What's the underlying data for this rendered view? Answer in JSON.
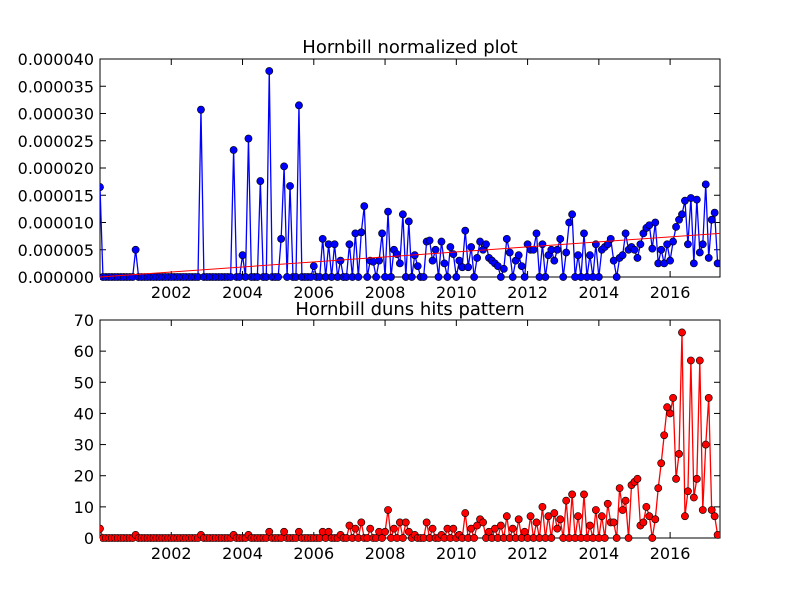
{
  "chart_data": [
    {
      "type": "line",
      "title": "Hornbill normalized plot",
      "xlabel": "",
      "ylabel": "",
      "xlim": [
        2000.0,
        2017.4
      ],
      "ylim": [
        0,
        4e-05
      ],
      "xticks": [
        2002,
        2004,
        2006,
        2008,
        2010,
        2012,
        2014,
        2016
      ],
      "xtick_labels": [
        "2002",
        "2004",
        "2006",
        "2008",
        "2010",
        "2012",
        "2014",
        "2016"
      ],
      "yticks": [
        0,
        5e-06,
        1e-05,
        1.5e-05,
        2e-05,
        2.5e-05,
        3e-05,
        3.5e-05,
        4e-05
      ],
      "ytick_labels": [
        "0.000000",
        "0.000005",
        "0.000010",
        "0.000015",
        "0.000020",
        "0.000025",
        "0.000030",
        "0.000035",
        "0.000040"
      ],
      "grid": false,
      "series": [
        {
          "color": "#0000ff",
          "marker": "circle",
          "x": [
            2000.0,
            2001.0,
            2002.83,
            2003.75,
            2004.0,
            2004.17,
            2004.5,
            2004.75,
            2005.08,
            2005.17,
            2005.33,
            2005.58,
            2006.0,
            2006.25,
            2006.42,
            2006.58,
            2006.75,
            2007.0,
            2007.17,
            2007.33,
            2007.42,
            2007.58,
            2007.67,
            2007.83,
            2007.92,
            2008.08,
            2008.25,
            2008.33,
            2008.42,
            2008.5,
            2008.67,
            2008.83,
            2008.92,
            2009.17,
            2009.25,
            2009.33,
            2009.42,
            2009.58,
            2009.67,
            2009.83,
            2009.92,
            2010.08,
            2010.17,
            2010.25,
            2010.33,
            2010.42,
            2010.58,
            2010.67,
            2010.75,
            2010.83,
            2010.92,
            2011.0,
            2011.08,
            2011.17,
            2011.33,
            2011.42,
            2011.5,
            2011.67,
            2011.75,
            2011.83,
            2012.0,
            2012.08,
            2012.17,
            2012.25,
            2012.42,
            2012.58,
            2012.67,
            2012.75,
            2012.83,
            2012.92,
            2013.08,
            2013.17,
            2013.25,
            2013.42,
            2013.58,
            2013.75,
            2013.92,
            2014.08,
            2014.17,
            2014.25,
            2014.33,
            2014.42,
            2014.58,
            2014.67,
            2014.75,
            2014.83,
            2014.92,
            2015.0,
            2015.08,
            2015.17,
            2015.25,
            2015.33,
            2015.42,
            2015.5,
            2015.58,
            2015.67,
            2015.75,
            2015.83,
            2015.92,
            2016.0,
            2016.08,
            2016.17,
            2016.25,
            2016.33,
            2016.42,
            2016.5,
            2016.58,
            2016.67,
            2016.75,
            2016.83,
            2016.92,
            2017.0,
            2017.08,
            2017.17,
            2017.25,
            2017.33
          ],
          "y": [
            1.65e-05,
            5e-06,
            3.07e-05,
            2.33e-05,
            4e-06,
            2.54e-05,
            1.76e-05,
            3.78e-05,
            7e-06,
            2.03e-05,
            1.67e-05,
            3.15e-05,
            2e-06,
            7e-06,
            6e-06,
            6e-06,
            3e-06,
            6e-06,
            8e-06,
            8.2e-06,
            1.3e-05,
            3e-06,
            2.8e-06,
            3e-06,
            8e-06,
            1.2e-05,
            5e-06,
            4.2e-06,
            2.5e-06,
            1.15e-05,
            1.02e-05,
            4e-06,
            2e-06,
            6.5e-06,
            6.7e-06,
            3e-06,
            5e-06,
            6.5e-06,
            2.5e-06,
            5.5e-06,
            4.2e-06,
            3e-06,
            1.8e-06,
            8.5e-06,
            1.8e-06,
            5.5e-06,
            3.5e-06,
            6.5e-06,
            5e-06,
            6e-06,
            3.5e-06,
            3e-06,
            2.5e-06,
            2e-06,
            1.5e-06,
            7e-06,
            4.5e-06,
            3e-06,
            4e-06,
            2e-06,
            6e-06,
            5e-06,
            5e-06,
            8e-06,
            6e-06,
            4e-06,
            5e-06,
            3e-06,
            5e-06,
            7e-06,
            4.5e-06,
            1e-05,
            1.15e-05,
            4e-06,
            8e-06,
            4e-06,
            6e-06,
            5e-06,
            5.5e-06,
            6e-06,
            7e-06,
            3e-06,
            3.5e-06,
            4e-06,
            8e-06,
            5e-06,
            5.5e-06,
            5e-06,
            3.5e-06,
            6e-06,
            8e-06,
            9e-06,
            9.5e-06,
            5.2e-06,
            1e-05,
            2.5e-06,
            5e-06,
            2.5e-06,
            6e-06,
            3e-06,
            6.5e-06,
            9.2e-06,
            1.05e-05,
            1.15e-05,
            1.4e-05,
            6e-06,
            1.45e-05,
            2.5e-06,
            1.42e-05,
            4.5e-06,
            6e-06,
            1.7e-05,
            3.5e-06,
            1.05e-05,
            1.18e-05,
            2.5e-06
          ]
        }
      ],
      "trendline": {
        "color": "#ff0000",
        "x": [
          2000.0,
          2017.4
        ],
        "y": [
          0,
          8e-06
        ]
      }
    },
    {
      "type": "line",
      "title": "Hornbill duns hits pattern",
      "xlabel": "",
      "ylabel": "",
      "xlim": [
        2000.0,
        2017.4
      ],
      "ylim": [
        0,
        70
      ],
      "xticks": [
        2002,
        2004,
        2006,
        2008,
        2010,
        2012,
        2014,
        2016
      ],
      "xtick_labels": [
        "2002",
        "2004",
        "2006",
        "2008",
        "2010",
        "2012",
        "2014",
        "2016"
      ],
      "yticks": [
        0,
        10,
        20,
        30,
        40,
        50,
        60,
        70
      ],
      "ytick_labels": [
        "0",
        "10",
        "20",
        "30",
        "40",
        "50",
        "60",
        "70"
      ],
      "grid": false,
      "series": [
        {
          "color": "#ff0000",
          "marker": "circle",
          "x": [
            2000.0,
            2001.0,
            2002.83,
            2003.75,
            2004.17,
            2004.75,
            2005.17,
            2005.58,
            2006.25,
            2006.42,
            2006.75,
            2007.0,
            2007.17,
            2007.33,
            2007.58,
            2007.83,
            2008.0,
            2008.08,
            2008.25,
            2008.42,
            2008.58,
            2008.67,
            2008.83,
            2009.17,
            2009.33,
            2009.58,
            2009.75,
            2009.92,
            2010.08,
            2010.25,
            2010.42,
            2010.58,
            2010.67,
            2010.75,
            2010.92,
            2011.08,
            2011.25,
            2011.42,
            2011.58,
            2011.75,
            2011.92,
            2012.08,
            2012.25,
            2012.42,
            2012.58,
            2012.75,
            2012.83,
            2012.92,
            2013.08,
            2013.25,
            2013.42,
            2013.58,
            2013.75,
            2013.92,
            2014.08,
            2014.25,
            2014.33,
            2014.42,
            2014.58,
            2014.67,
            2014.75,
            2014.92,
            2015.0,
            2015.08,
            2015.17,
            2015.25,
            2015.33,
            2015.42,
            2015.58,
            2015.67,
            2015.75,
            2015.83,
            2015.92,
            2016.0,
            2016.08,
            2016.17,
            2016.25,
            2016.33,
            2016.42,
            2016.5,
            2016.58,
            2016.67,
            2016.75,
            2016.83,
            2016.92,
            2017.0,
            2017.08,
            2017.17,
            2017.25,
            2017.33
          ],
          "y": [
            3,
            1,
            1,
            1,
            1,
            2,
            2,
            2,
            2,
            2,
            1,
            4,
            3,
            5,
            3,
            2,
            2,
            9,
            3,
            5,
            5,
            2,
            1,
            5,
            3,
            1,
            3,
            3,
            1,
            8,
            3,
            4,
            6,
            5,
            2,
            3,
            4,
            7,
            3,
            6,
            2,
            7,
            5,
            10,
            7,
            8,
            3,
            6,
            12,
            14,
            7,
            14,
            4,
            9,
            7,
            11,
            5,
            5,
            16,
            9,
            12,
            17,
            18,
            19,
            4,
            5,
            10,
            7,
            6,
            16,
            24,
            33,
            42,
            40,
            45,
            19,
            27,
            66,
            7,
            15,
            57,
            13,
            19,
            57,
            9,
            30,
            45,
            9,
            7,
            1
          ]
        }
      ]
    }
  ]
}
